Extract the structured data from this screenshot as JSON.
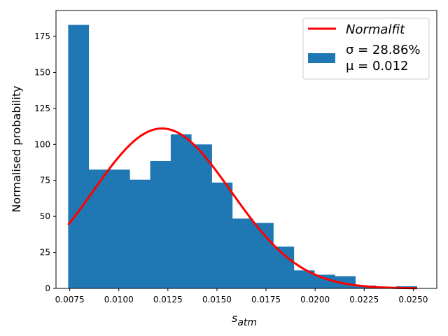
{
  "chart_data": {
    "type": "histogram",
    "xlabel_base": "s",
    "xlabel_sub": "atm",
    "ylabel": "Normalised probability",
    "xlim": [
      0.0068,
      0.0262
    ],
    "ylim": [
      0,
      193
    ],
    "xticks": [
      {
        "value": 0.0075,
        "label": "0.0075"
      },
      {
        "value": 0.01,
        "label": "0.0100"
      },
      {
        "value": 0.0125,
        "label": "0.0125"
      },
      {
        "value": 0.015,
        "label": "0.0150"
      },
      {
        "value": 0.0175,
        "label": "0.0175"
      },
      {
        "value": 0.02,
        "label": "0.0200"
      },
      {
        "value": 0.0225,
        "label": "0.0225"
      },
      {
        "value": 0.025,
        "label": "0.0250"
      }
    ],
    "yticks": [
      {
        "value": 0,
        "label": "0"
      },
      {
        "value": 25,
        "label": "25"
      },
      {
        "value": 50,
        "label": "50"
      },
      {
        "value": 75,
        "label": "75"
      },
      {
        "value": 100,
        "label": "100"
      },
      {
        "value": 125,
        "label": "125"
      },
      {
        "value": 150,
        "label": "150"
      },
      {
        "value": 175,
        "label": "175"
      }
    ],
    "bins": {
      "start": 0.00742,
      "width": 0.001045,
      "counts": [
        183,
        82.5,
        82.5,
        75.5,
        88.5,
        107,
        100,
        73.5,
        48.5,
        45.5,
        29,
        12.5,
        9.5,
        8.5,
        2,
        1,
        1.5
      ]
    },
    "fit": {
      "name": "Normalfit",
      "mean": 0.0122,
      "sd": 0.00352,
      "scale": 0.98,
      "x_range": [
        0.00742,
        0.0252
      ]
    },
    "colors": {
      "bar": "#1f77b4",
      "fit": "#ff0000"
    },
    "legend": {
      "placement": "top-right",
      "fit_label": "Normalfit",
      "hist_line1": "σ = 28.86%",
      "hist_line2": "μ = 0.012"
    }
  }
}
